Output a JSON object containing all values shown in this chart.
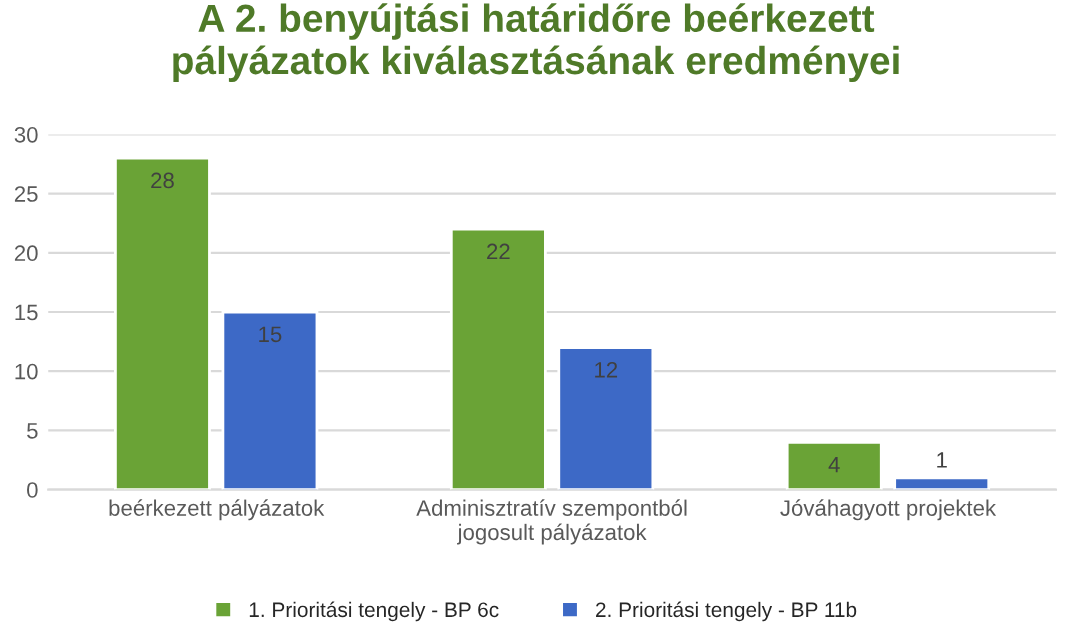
{
  "chart_data": {
    "type": "bar",
    "title": "A 2. benyújtási határidőre beérkezett\npályázatok kiválasztásának eredményei",
    "categories": [
      "beérkezett pályázatok",
      "Adminisztratív szempontból\njogosult pályázatok",
      "Jóváhagyott projektek"
    ],
    "series": [
      {
        "name": "1. Prioritási tengely - BP 6c",
        "color": "#6aa336",
        "values": [
          28,
          22,
          4
        ]
      },
      {
        "name": "2. Prioritási tengely - BP 11b",
        "color": "#3d69c6",
        "values": [
          15,
          12,
          1
        ]
      }
    ],
    "ylim": [
      0,
      30
    ],
    "yticks": [
      0,
      5,
      10,
      15,
      20,
      25,
      30
    ],
    "grid": "y",
    "legend": "bottom",
    "data_labels": true
  }
}
